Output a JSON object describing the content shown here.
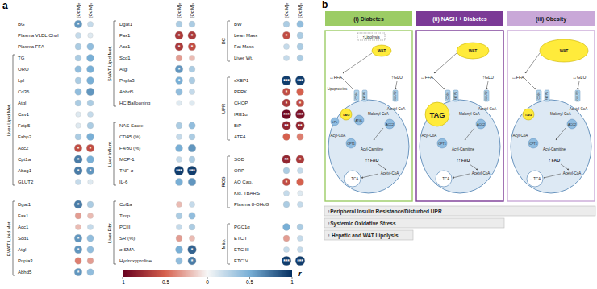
{
  "chart_data": {
    "type": "heatmap",
    "label": "a",
    "columns": [
      "[OctM]ₑ",
      "[OctM]ₛ"
    ],
    "blocks": [
      [
        {
          "label": null,
          "rows": [
            {
              "label": "BG",
              "values": [
                0.6,
                0.2
              ],
              "sig": [
                "*",
                null
              ]
            },
            {
              "label": "Plasma VLDL Chol",
              "values": [
                0.2,
                0.1
              ],
              "sig": [
                null,
                null
              ]
            },
            {
              "label": "Plasma FFA",
              "values": [
                0.3,
                0.4
              ],
              "sig": [
                null,
                null
              ]
            }
          ]
        },
        {
          "label": "Liver Lipid Met.",
          "rows": [
            {
              "label": "TG",
              "values": [
                0.3,
                0.5
              ],
              "sig": [
                null,
                null
              ]
            },
            {
              "label": "ORO",
              "values": [
                0.4,
                0.5
              ],
              "sig": [
                null,
                null
              ]
            },
            {
              "label": "Lpl",
              "values": [
                0.3,
                0.5
              ],
              "sig": [
                null,
                null
              ]
            },
            {
              "label": "Cd36",
              "values": [
                0.4,
                0.6
              ],
              "sig": [
                null,
                null
              ]
            },
            {
              "label": "Atgl",
              "values": [
                0.3,
                0.3
              ],
              "sig": [
                null,
                null
              ]
            },
            {
              "label": "Cav1",
              "values": [
                0.1,
                0.2
              ],
              "sig": [
                null,
                null
              ]
            },
            {
              "label": "Fatp5",
              "values": [
                0.1,
                0.3
              ],
              "sig": [
                null,
                null
              ]
            },
            {
              "label": "Fabp2",
              "values": [
                0.3,
                0.5
              ],
              "sig": [
                null,
                null
              ]
            },
            {
              "label": "Acc2",
              "values": [
                -0.6,
                -0.6
              ],
              "sig": [
                "*",
                "*"
              ]
            },
            {
              "label": "Cpt1a",
              "values": [
                0.7,
                0.5
              ],
              "sig": [
                "*",
                null
              ]
            },
            {
              "label": "Abcg1",
              "values": [
                0.7,
                0.6
              ],
              "sig": [
                "*",
                "*"
              ]
            },
            {
              "label": "GLUT2",
              "values": [
                0.2,
                0.1
              ],
              "sig": [
                null,
                null
              ]
            }
          ]
        },
        {
          "label": "EWAT Lipid Met.",
          "rows": [
            {
              "label": "Dgat1",
              "values": [
                0.7,
                0.3
              ],
              "sig": [
                "*",
                null
              ]
            },
            {
              "label": "Fas1",
              "values": [
                -0.3,
                -0.2
              ],
              "sig": [
                null,
                null
              ]
            },
            {
              "label": "Acc1",
              "values": [
                -0.2,
                0.2
              ],
              "sig": [
                null,
                null
              ]
            },
            {
              "label": "Scd1",
              "values": [
                0.6,
                0.4
              ],
              "sig": [
                "*",
                null
              ]
            },
            {
              "label": "Atgl",
              "values": [
                0.6,
                0.4
              ],
              "sig": [
                "*",
                null
              ]
            },
            {
              "label": "Pnpla3",
              "values": [
                -0.4,
                -0.3
              ],
              "sig": [
                null,
                null
              ]
            },
            {
              "label": "Abhd5",
              "values": [
                0.6,
                0.4
              ],
              "sig": [
                "*",
                null
              ]
            }
          ]
        }
      ],
      [
        {
          "label": "SWAT Lipid Met.",
          "rows": [
            {
              "label": "Dgat1",
              "values": [
                0.3,
                0.3
              ],
              "sig": [
                null,
                null
              ]
            },
            {
              "label": "Fas1",
              "values": [
                -0.7,
                -0.7
              ],
              "sig": [
                "*",
                "*"
              ]
            },
            {
              "label": "Acc1",
              "values": [
                -0.7,
                -0.6
              ],
              "sig": [
                "*",
                "*"
              ]
            },
            {
              "label": "Scd1",
              "values": [
                -0.3,
                -0.2
              ],
              "sig": [
                null,
                null
              ]
            },
            {
              "label": "Atgl",
              "values": [
                0.6,
                0.3
              ],
              "sig": [
                "*",
                null
              ]
            },
            {
              "label": "Pnpla3",
              "values": [
                0.5,
                0.3
              ],
              "sig": [
                "*",
                null
              ]
            },
            {
              "label": "Abhd5",
              "values": [
                0.4,
                0.2
              ],
              "sig": [
                null,
                null
              ]
            },
            {
              "label": "HC Ballooning",
              "values": [
                0.1,
                0.1
              ],
              "sig": [
                null,
                null
              ]
            }
          ]
        },
        {
          "label": "Liver Inflam.",
          "rows": [
            {
              "label": "NAS Score",
              "values": [
                0.3,
                0.4
              ],
              "sig": [
                null,
                null
              ]
            },
            {
              "label": "CD45 (%)",
              "values": [
                0.2,
                0.3
              ],
              "sig": [
                null,
                null
              ]
            },
            {
              "label": "F4/80 (%)",
              "values": [
                0.5,
                0.6
              ],
              "sig": [
                null,
                null
              ]
            },
            {
              "label": "MCP-1",
              "values": [
                0.2,
                0.3
              ],
              "sig": [
                null,
                null
              ]
            },
            {
              "label": "TNF-α",
              "values": [
                0.95,
                0.95
              ],
              "sig": [
                "***",
                "***"
              ]
            },
            {
              "label": "IL-6",
              "values": [
                0.5,
                0.6
              ],
              "sig": [
                null,
                null
              ]
            }
          ]
        },
        {
          "label": "Liver Fibr.",
          "rows": [
            {
              "label": "Col1a",
              "values": [
                -0.2,
                0.2
              ],
              "sig": [
                null,
                null
              ]
            },
            {
              "label": "Timp",
              "values": [
                0.3,
                0.4
              ],
              "sig": [
                null,
                null
              ]
            },
            {
              "label": "PCIII",
              "values": [
                0.2,
                0.3
              ],
              "sig": [
                null,
                null
              ]
            },
            {
              "label": "SR (%)",
              "values": [
                -0.3,
                -0.2
              ],
              "sig": [
                null,
                null
              ]
            },
            {
              "label": "α-SMA",
              "values": [
                0.5,
                0.8
              ],
              "sig": [
                null,
                "*"
              ]
            },
            {
              "label": "Hydroxyproline",
              "values": [
                0.4,
                0.7
              ],
              "sig": [
                null,
                "*"
              ]
            }
          ]
        }
      ],
      [
        {
          "label": "BC",
          "rows": [
            {
              "label": "BW",
              "values": [
                0.3,
                0.4
              ],
              "sig": [
                null,
                null
              ]
            },
            {
              "label": "Lean Mass",
              "values": [
                -0.6,
                0.3
              ],
              "sig": [
                "*",
                null
              ]
            },
            {
              "label": "Fat Mass",
              "values": [
                0.2,
                0.3
              ],
              "sig": [
                null,
                null
              ]
            },
            {
              "label": "Liver Wt.",
              "values": [
                0.2,
                0.3
              ],
              "sig": [
                null,
                null
              ]
            }
          ]
        },
        {
          "label": "UPR",
          "rows": [
            {
              "label": "sXBP1",
              "values": [
                0.95,
                0.95
              ],
              "sig": [
                "***",
                "***"
              ]
            },
            {
              "label": "PERK",
              "values": [
                -0.6,
                -0.5
              ],
              "sig": [
                "*",
                null
              ]
            },
            {
              "label": "CHOP",
              "values": [
                -0.7,
                -0.6
              ],
              "sig": [
                "*",
                "*"
              ]
            },
            {
              "label": "IRE1α",
              "values": [
                -0.95,
                -0.9
              ],
              "sig": [
                "***",
                "***"
              ]
            },
            {
              "label": "BiP",
              "values": [
                -0.8,
                -0.8
              ],
              "sig": [
                "**",
                "**"
              ]
            },
            {
              "label": "ATF4",
              "values": [
                -0.5,
                -0.4
              ],
              "sig": [
                null,
                null
              ]
            }
          ]
        },
        {
          "label": "ROS",
          "rows": [
            {
              "label": "SOD",
              "values": [
                -0.8,
                -0.7
              ],
              "sig": [
                "**",
                "*"
              ]
            },
            {
              "label": "ORP",
              "values": [
                0.3,
                0.2
              ],
              "sig": [
                null,
                null
              ]
            },
            {
              "label": "AO Cap.",
              "values": [
                -0.6,
                -0.5
              ],
              "sig": [
                "*",
                null
              ]
            },
            {
              "label": "Kid. TBARS",
              "values": [
                0.2,
                0.1
              ],
              "sig": [
                null,
                null
              ]
            },
            {
              "label": "Plasma 8-OHdG",
              "values": [
                0.3,
                0.2
              ],
              "sig": [
                null,
                null
              ]
            }
          ]
        },
        {
          "label": "Mito.",
          "rows": [
            {
              "label": "PGC1α",
              "values": [
                0.5,
                0.3
              ],
              "sig": [
                null,
                null
              ]
            },
            {
              "label": "ETC I",
              "values": [
                -0.3,
                0.2
              ],
              "sig": [
                null,
                null
              ]
            },
            {
              "label": "ETC III",
              "values": [
                0.2,
                0.2
              ],
              "sig": [
                null,
                null
              ]
            },
            {
              "label": "ETC V",
              "values": [
                0.95,
                0.95
              ],
              "sig": [
                "***",
                "***"
              ]
            }
          ]
        }
      ]
    ],
    "colorbar": {
      "lim": [
        -1,
        1
      ],
      "ticks": [
        -1,
        -0.5,
        0,
        0.5,
        1
      ],
      "label": "r"
    }
  },
  "diagram": {
    "label": "b",
    "panels": [
      {
        "title": "(i) Diabetes",
        "color": "#9ccc65",
        "lipolysis": "↑Lipolysis",
        "wat": "WAT",
        "ffa": "↔FFA",
        "glu": "↑GLU",
        "lipoproteins": "Lipoproteins",
        "lpl": "LPL",
        "atgl": "ATGL",
        "transporters": [
          "CD36",
          "FATP5",
          "GLUT2"
        ],
        "tag": "TAG",
        "malonyl_coa": "Malonyl-CoA",
        "acetyl_coa_glu": "Acetyl-CoA",
        "acc2": "ACC2",
        "acyl_coa": "Acyl-CoA",
        "cpt1": "CPT1",
        "acyl_carnitine": "Acyl-Carnitine",
        "fao": "↑↑ FAO",
        "acetyl_coa": "Acetyl-CoA",
        "tca": "↔ TCA"
      },
      {
        "title": "(ii) NASH + Diabetes",
        "color": "#7b3a96",
        "wat": "WAT",
        "ffa": "↔FFA",
        "glu": "↑GLU",
        "transporters": [
          "CD36",
          "FATP5",
          "GLUT2"
        ],
        "tag": "TAG",
        "malonyl_coa": "Malonyl-CoA",
        "acetyl_coa_glu": "Acetyl-CoA",
        "acc2": "ACC2",
        "acyl_coa": "Acyl-CoA",
        "cpt1": "CPT1",
        "acyl_carnitine": "Acyl-Carnitine",
        "fao": "↑↑ FAO",
        "acetyl_coa": "Acetyl-CoA",
        "tca": "↔ TCA"
      },
      {
        "title": "(iii) Obesity",
        "color": "#c9a8d8",
        "wat": "WAT",
        "ffa": "↔FFA",
        "glu": "↔GLU",
        "transporters": [
          "CD36",
          "FATP5",
          "GLUT2"
        ],
        "tag": "TAG",
        "malonyl_coa": "Malonyl-CoA",
        "acetyl_coa_glu": "Acetyl-CoA",
        "acc2": "ACC2",
        "acyl_coa": "Acyl-CoA",
        "cpt1": "CPT1",
        "acyl_carnitine": "Acyl-Carnitine",
        "fao": "↑ FAO",
        "acetyl_coa": "Acetyl-CoA",
        "tca": "↔ TCA"
      }
    ],
    "bars": [
      "↑Peripheral Insulin Resistance/Disturbed UPR",
      "↑Systemic Oxidative Stress",
      "↑ Hepatic and WAT Lipolysis"
    ]
  }
}
